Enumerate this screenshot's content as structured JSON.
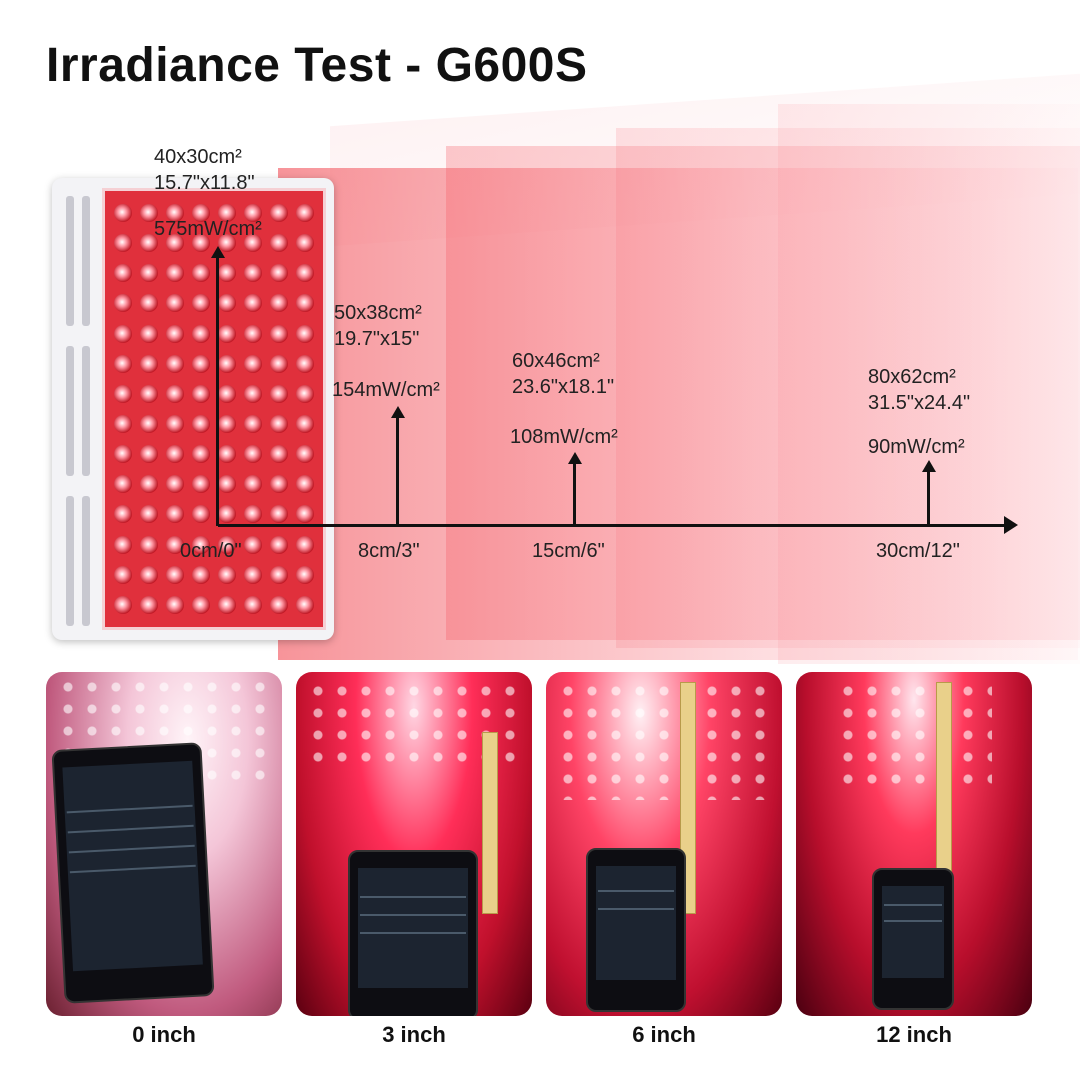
{
  "title": "Irradiance Test - G600S",
  "measurements": [
    {
      "area_cm": "40x30cm²",
      "area_in": "15.7\"x11.8\"",
      "irradiance": "575mW/cm²",
      "distance": "0cm/0\""
    },
    {
      "area_cm": "50x38cm²",
      "area_in": "19.7\"x15\"",
      "irradiance": "154mW/cm²",
      "distance": "8cm/3\""
    },
    {
      "area_cm": "60x46cm²",
      "area_in": "23.6\"x18.1\"",
      "irradiance": "108mW/cm²",
      "distance": "15cm/6\""
    },
    {
      "area_cm": "80x62cm²",
      "area_in": "31.5\"x24.4\"",
      "irradiance": "90mW/cm²",
      "distance": "30cm/12\""
    }
  ],
  "photos": [
    {
      "caption": "0 inch"
    },
    {
      "caption": "3 inch"
    },
    {
      "caption": "6 inch"
    },
    {
      "caption": "12 inch"
    }
  ],
  "colors": {
    "light": "#f03c46",
    "panel": "#e0303c",
    "axis": "#111111"
  },
  "icons": [
    "led-panel-icon",
    "arrow-up-icon",
    "arrow-right-icon"
  ]
}
